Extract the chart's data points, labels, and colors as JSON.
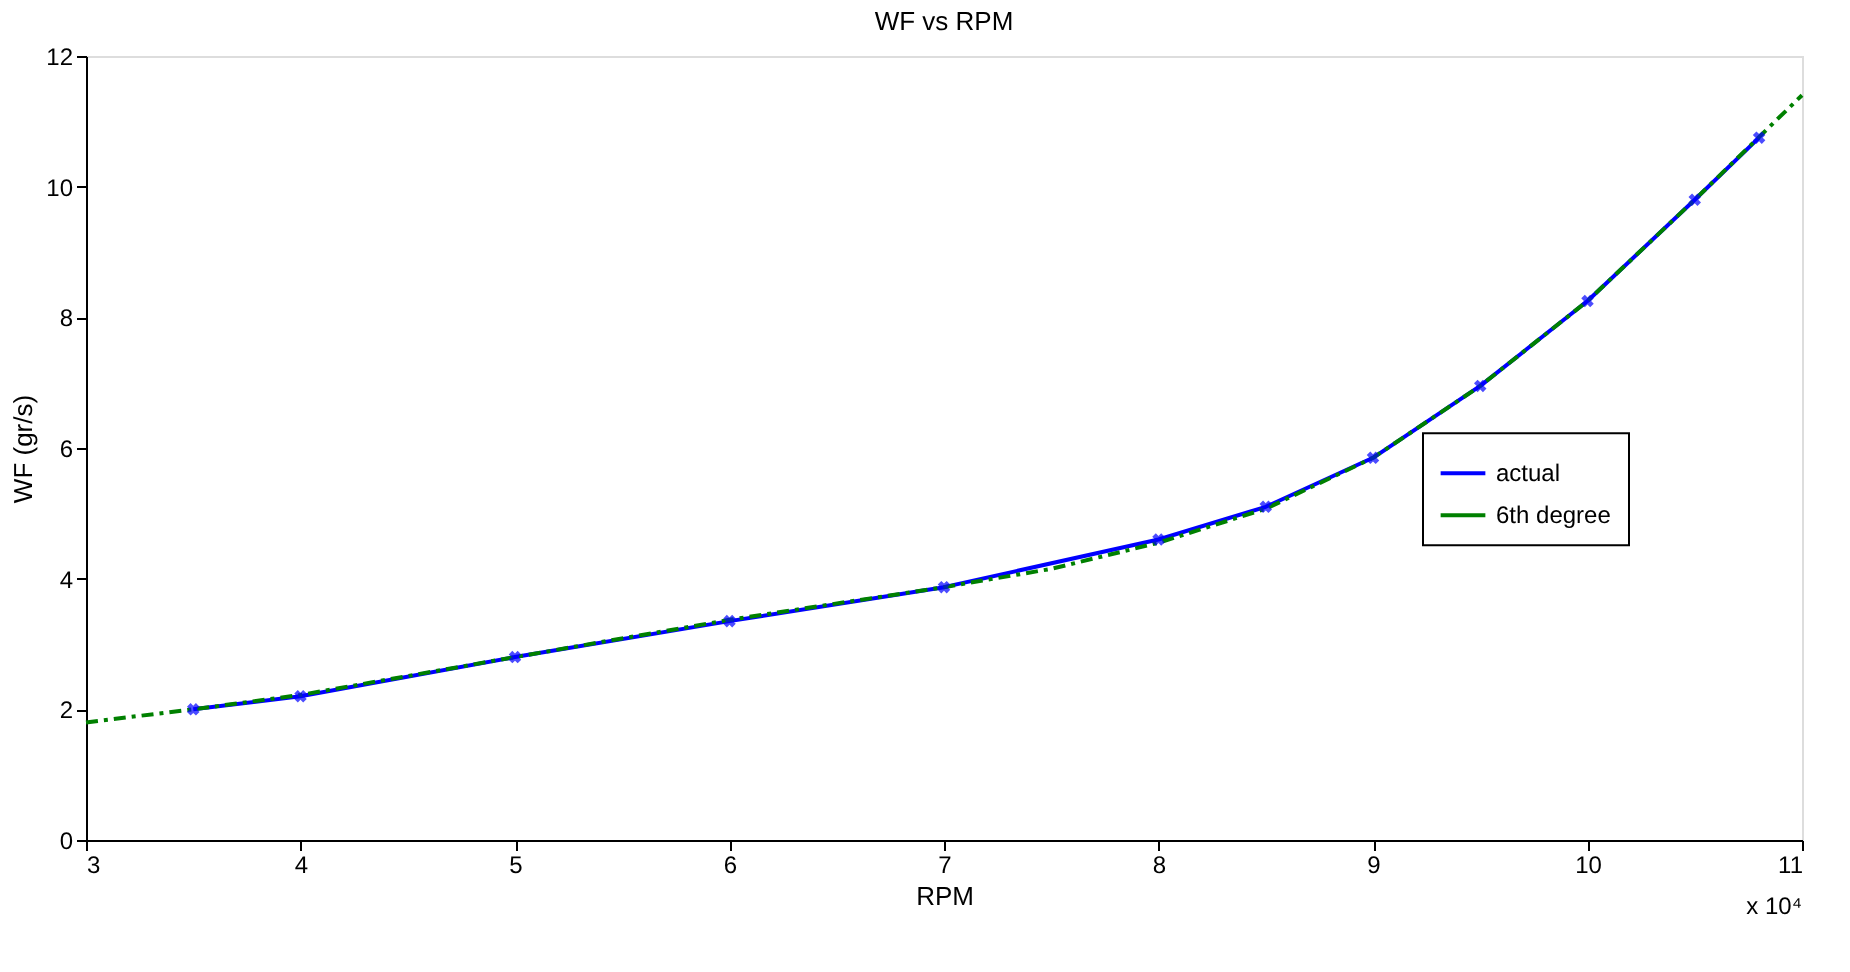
{
  "chart_data": {
    "type": "line",
    "title": "WF vs RPM",
    "xlabel": "RPM",
    "ylabel": "WF (gr/s)",
    "xlim": [
      3,
      11
    ],
    "xticks": [
      3,
      4,
      5,
      6,
      7,
      8,
      9,
      10,
      11
    ],
    "ylim": [
      0,
      12
    ],
    "yticks": [
      0,
      2,
      4,
      6,
      8,
      10,
      12
    ],
    "annotations": [
      "x 10⁴"
    ],
    "legend": "right",
    "grid": false,
    "series": [
      {
        "name": "actual",
        "color": "#0000ff",
        "marker": "cross",
        "line_style": "solid",
        "x": [
          3.5,
          4,
          5,
          6,
          7,
          8,
          8.5,
          9,
          9.5,
          10,
          10.5,
          10.8
        ],
        "values": [
          2.0,
          2.2,
          2.8,
          3.35,
          3.87,
          4.6,
          5.1,
          5.85,
          6.95,
          8.25,
          9.8,
          10.75
        ]
      },
      {
        "name": "6th degree",
        "color": "#008000",
        "marker": "none",
        "line_style": "dashed",
        "x": [
          3,
          3.5,
          4,
          5,
          6,
          7,
          7.5,
          8,
          8.5,
          9,
          9.5,
          10,
          10.5,
          11
        ],
        "values": [
          1.8,
          2.0,
          2.22,
          2.8,
          3.37,
          3.87,
          4.15,
          4.55,
          5.07,
          5.85,
          6.95,
          8.25,
          9.8,
          11.4
        ]
      }
    ]
  }
}
